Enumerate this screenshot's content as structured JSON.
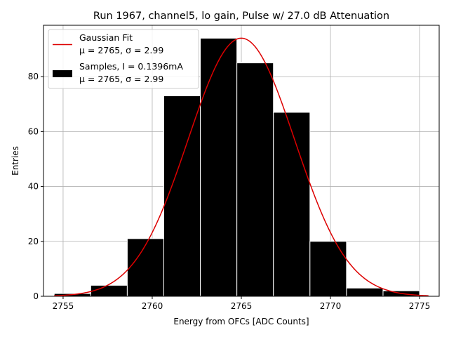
{
  "chart_data": {
    "type": "bar",
    "title": "Run 1967, channel5, lo gain, Pulse w/ 27.0 dB Attenuation",
    "xlabel": "Energy from OFCs [ADC Counts]",
    "ylabel": "Entries",
    "xlim": [
      2753.9,
      2776.1
    ],
    "ylim": [
      0,
      98.7
    ],
    "xticks": [
      2755,
      2760,
      2765,
      2770,
      2775
    ],
    "yticks": [
      0,
      20,
      40,
      60,
      80
    ],
    "grid": true,
    "legend_position": "top-left",
    "bins": {
      "edges": [
        2754.5,
        2756.55,
        2758.6,
        2760.65,
        2762.7,
        2764.75,
        2766.8,
        2768.85,
        2770.9,
        2772.95,
        2775.0
      ],
      "counts": [
        1,
        4,
        21,
        73,
        94,
        85,
        67,
        20,
        3,
        2
      ],
      "color": "#000000",
      "edgecolor": "#ffffff"
    },
    "fit": {
      "mu": 2765,
      "sigma": 2.99,
      "amplitude": 94,
      "x_range": [
        2754.5,
        2775.5
      ],
      "color": "#dd0000"
    },
    "legend": [
      {
        "label_line1": "Gaussian Fit",
        "label_line2": "μ = 2765, σ = 2.99",
        "style": "line",
        "color": "#dd0000"
      },
      {
        "label_line1": "Samples, I = 0.1396mA",
        "label_line2": "μ = 2765, σ = 2.99",
        "style": "patch",
        "color": "#000000"
      }
    ]
  }
}
